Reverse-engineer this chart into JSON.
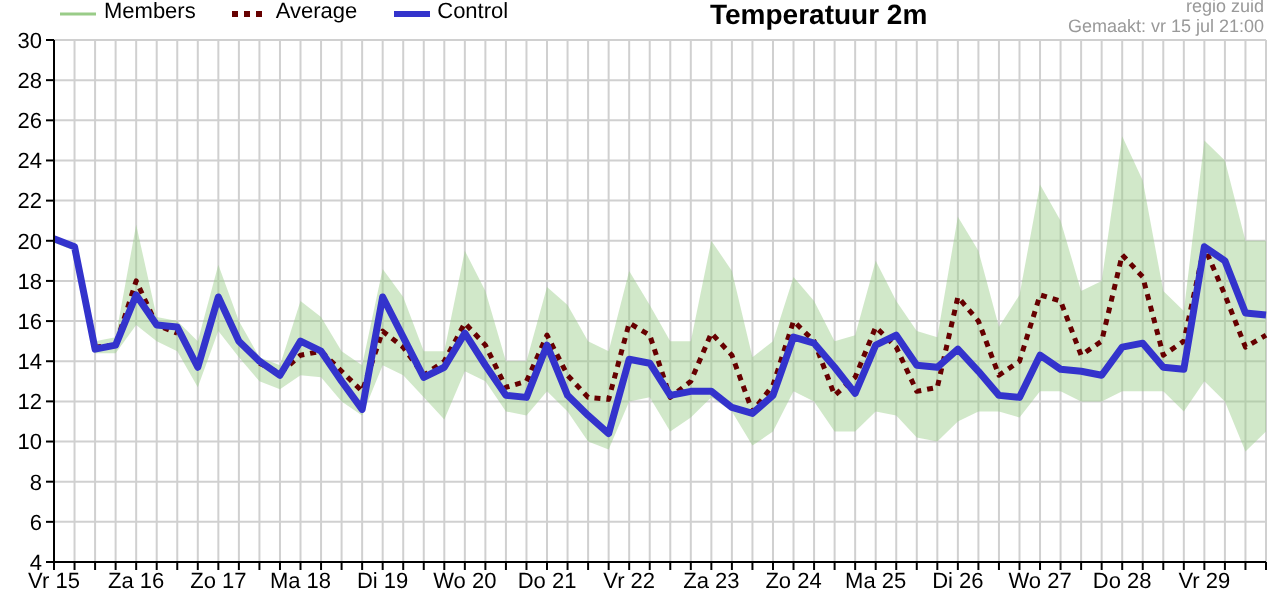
{
  "chart_data": {
    "type": "line",
    "title": "Temperatuur 2m",
    "annotations": [
      "regio zuid",
      "Gemaakt: vr 15 jul 21:00"
    ],
    "categories": [
      "Vr 15",
      null,
      null,
      null,
      "Za 16",
      null,
      null,
      null,
      "Zo 17",
      null,
      null,
      null,
      "Ma 18",
      null,
      null,
      null,
      "Di 19",
      null,
      null,
      null,
      "Wo 20",
      null,
      null,
      null,
      "Do 21",
      null,
      null,
      null,
      "Vr 22",
      null,
      null,
      null,
      "Za 23",
      null,
      null,
      null,
      "Zo 24",
      null,
      null,
      null,
      "Ma 25",
      null,
      null,
      null,
      "Di 26",
      null,
      null,
      null,
      "Wo 27",
      null,
      null,
      null,
      "Do 28",
      null,
      null,
      null,
      "Vr 29",
      null,
      null,
      null
    ],
    "ylim": [
      4,
      30
    ],
    "yticks": [
      4,
      6,
      8,
      10,
      12,
      14,
      16,
      18,
      20,
      22,
      24,
      26,
      28,
      30
    ],
    "grid": true,
    "legend": "top left",
    "marker": "none",
    "series": [
      {
        "name": "Members",
        "color": "#99cc88",
        "type": "area",
        "values": [
          null,
          null,
          null,
          null,
          null,
          null,
          null,
          null,
          null,
          null,
          null,
          null,
          null,
          null,
          null,
          null,
          null,
          null,
          null,
          null,
          null,
          null,
          null,
          null,
          null,
          null,
          null,
          null,
          null,
          null,
          null,
          null,
          null,
          null,
          null,
          null,
          null,
          null,
          null,
          null,
          null,
          null,
          null,
          null,
          null,
          null,
          null,
          null,
          null,
          null,
          null,
          null,
          null,
          null,
          null,
          null,
          null,
          null,
          null,
          null
        ],
        "lower": [
          19.9,
          19.5,
          14.4,
          14.4,
          15.8,
          15.0,
          14.5,
          12.7,
          15.5,
          14.2,
          13.0,
          12.6,
          13.3,
          13.2,
          12.0,
          11.3,
          13.8,
          13.3,
          12.2,
          11.1,
          13.5,
          13.0,
          11.5,
          11.3,
          12.5,
          11.5,
          10.0,
          9.6,
          12.0,
          12.2,
          10.5,
          11.2,
          12.2,
          11.5,
          9.8,
          10.5,
          12.5,
          12.0,
          10.5,
          10.5,
          11.5,
          11.3,
          10.2,
          10.0,
          11.0,
          11.5,
          11.5,
          11.2,
          12.5,
          12.5,
          12.0,
          12.0,
          12.5,
          12.5,
          12.5,
          11.5,
          13.0,
          12.0,
          9.5,
          10.5
        ],
        "upper": [
          20.1,
          19.8,
          15.0,
          15.2,
          20.8,
          16.2,
          16.0,
          15.0,
          18.8,
          16.0,
          14.2,
          13.8,
          17.0,
          16.2,
          14.5,
          13.8,
          18.6,
          17.2,
          14.5,
          14.5,
          19.5,
          17.5,
          14.0,
          14.0,
          17.7,
          16.8,
          15.0,
          14.5,
          18.5,
          16.8,
          15.0,
          15.0,
          20.0,
          18.5,
          14.2,
          15.0,
          18.2,
          17.0,
          15.0,
          15.3,
          19.0,
          17.0,
          15.5,
          15.2,
          21.2,
          19.5,
          15.7,
          17.3,
          22.8,
          21.0,
          17.5,
          18.0,
          25.2,
          23.0,
          17.5,
          16.5,
          25.0,
          24.0,
          20.0,
          20.0
        ]
      },
      {
        "name": "Average",
        "color": "#660000",
        "type": "line",
        "line_style": "dotted",
        "values": [
          null,
          null,
          14.7,
          14.8,
          18.0,
          15.8,
          15.4,
          null,
          null,
          null,
          13.9,
          13.4,
          14.3,
          14.5,
          13.5,
          12.5,
          15.5,
          14.7,
          13.3,
          14.0,
          15.9,
          14.8,
          12.7,
          13.0,
          15.3,
          13.3,
          12.2,
          12.1,
          15.9,
          15.3,
          12.2,
          13.0,
          15.4,
          14.3,
          11.5,
          12.8,
          16.0,
          15.0,
          12.3,
          13.2,
          15.7,
          14.7,
          12.5,
          12.7,
          17.2,
          16.0,
          13.3,
          14.0,
          17.3,
          17.0,
          14.3,
          15.0,
          19.3,
          18.2,
          14.3,
          15.0,
          19.7,
          17.3,
          14.7,
          15.3
        ]
      },
      {
        "name": "Control",
        "color": "#3333cc",
        "type": "line",
        "line_style": "solid",
        "values": [
          20.1,
          19.7,
          14.6,
          14.8,
          17.3,
          15.8,
          15.7,
          13.7,
          17.2,
          15.0,
          14.0,
          13.3,
          15.0,
          14.5,
          13.0,
          11.6,
          17.2,
          15.2,
          13.2,
          13.7,
          15.4,
          13.8,
          12.3,
          12.2,
          14.8,
          12.3,
          11.3,
          10.4,
          14.1,
          13.9,
          12.3,
          12.5,
          12.5,
          11.7,
          11.4,
          12.3,
          15.2,
          14.9,
          13.7,
          12.4,
          14.8,
          15.3,
          13.8,
          13.7,
          14.6,
          13.5,
          12.3,
          12.2,
          14.3,
          13.6,
          13.5,
          13.3,
          14.7,
          14.9,
          13.7,
          13.6,
          19.7,
          19.0,
          16.4,
          16.3
        ]
      }
    ]
  }
}
